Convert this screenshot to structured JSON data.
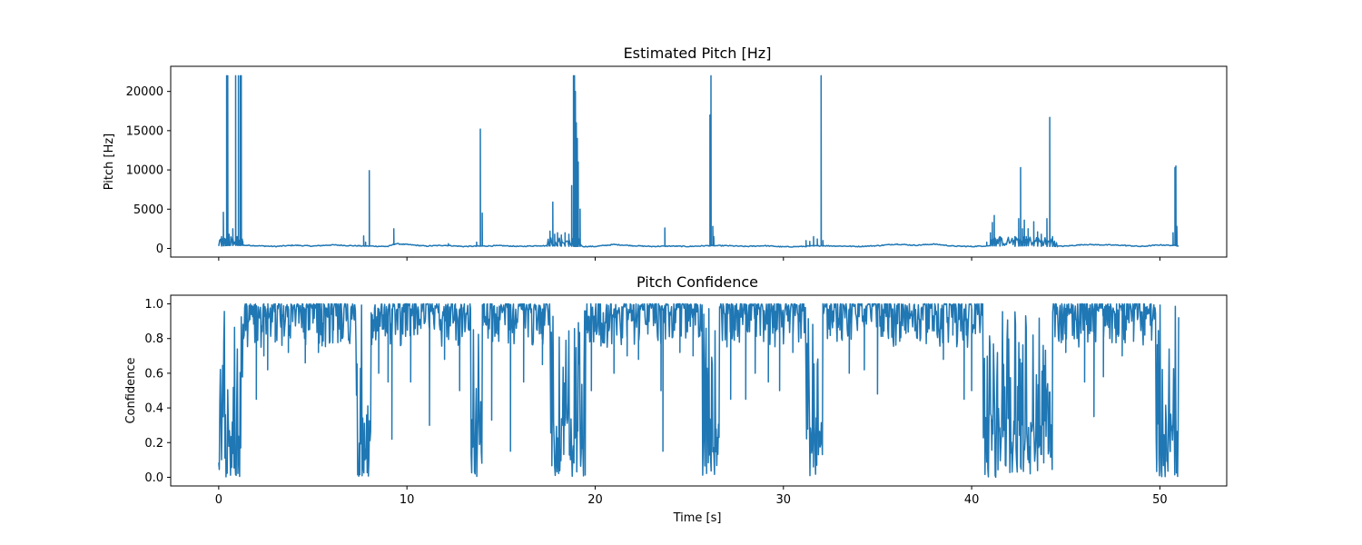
{
  "figure": {
    "background": "#ffffff",
    "series_color": "#1f77b4"
  },
  "chart_data": [
    {
      "type": "line",
      "title": "Estimated Pitch [Hz]",
      "xlabel": "",
      "ylabel": "Pitch [Hz]",
      "xlim": [
        -2.55,
        53.55
      ],
      "ylim": [
        -1100,
        23200
      ],
      "xticks": [
        0,
        10,
        20,
        30,
        40,
        50
      ],
      "xtick_labels_shown": false,
      "yticks": [
        0,
        5000,
        10000,
        15000,
        20000
      ],
      "ytick_labels": [
        "0",
        "5000",
        "10000",
        "15000",
        "20000"
      ],
      "grid": false,
      "legend": "none",
      "baseline": [
        [
          0,
          280
        ],
        [
          0.5,
          380
        ],
        [
          1.5,
          400
        ],
        [
          3,
          250
        ],
        [
          4,
          400
        ],
        [
          5,
          300
        ],
        [
          6,
          450
        ],
        [
          7,
          350
        ],
        [
          8,
          300
        ],
        [
          9,
          250
        ],
        [
          9.4,
          600
        ],
        [
          10,
          500
        ],
        [
          11,
          300
        ],
        [
          12,
          400
        ],
        [
          13,
          250
        ],
        [
          14,
          300
        ],
        [
          15,
          350
        ],
        [
          16,
          250
        ],
        [
          17,
          350
        ],
        [
          18,
          300
        ],
        [
          19.5,
          250
        ],
        [
          20,
          250
        ],
        [
          21,
          500
        ],
        [
          22,
          350
        ],
        [
          23,
          250
        ],
        [
          24,
          300
        ],
        [
          25,
          250
        ],
        [
          26,
          350
        ],
        [
          27,
          350
        ],
        [
          28,
          250
        ],
        [
          29,
          350
        ],
        [
          30,
          200
        ],
        [
          31,
          250
        ],
        [
          32,
          350
        ],
        [
          33,
          300
        ],
        [
          34,
          250
        ],
        [
          35,
          350
        ],
        [
          36,
          550
        ],
        [
          37,
          400
        ],
        [
          38,
          550
        ],
        [
          39,
          300
        ],
        [
          40,
          250
        ],
        [
          41,
          350
        ],
        [
          42,
          250
        ],
        [
          43,
          350
        ],
        [
          44,
          250
        ],
        [
          45,
          300
        ],
        [
          46,
          500
        ],
        [
          47,
          450
        ],
        [
          48,
          400
        ],
        [
          49,
          250
        ],
        [
          50,
          450
        ],
        [
          51,
          350
        ]
      ],
      "spikes": [
        [
          0.15,
          1500
        ],
        [
          0.25,
          4600
        ],
        [
          0.35,
          1200
        ],
        [
          0.42,
          22000
        ],
        [
          0.48,
          22000
        ],
        [
          0.55,
          1800
        ],
        [
          0.62,
          800
        ],
        [
          0.75,
          2500
        ],
        [
          0.9,
          22000
        ],
        [
          0.98,
          1500
        ],
        [
          1.05,
          22000
        ],
        [
          1.1,
          600
        ],
        [
          1.15,
          22000
        ],
        [
          1.2,
          22000
        ],
        [
          1.28,
          900
        ],
        [
          7.7,
          1600
        ],
        [
          7.8,
          800
        ],
        [
          8.0,
          9900
        ],
        [
          9.3,
          2500
        ],
        [
          12.2,
          600
        ],
        [
          13.7,
          800
        ],
        [
          13.9,
          15200
        ],
        [
          14.0,
          4500
        ],
        [
          17.6,
          2200
        ],
        [
          17.75,
          5900
        ],
        [
          17.85,
          1800
        ],
        [
          18.0,
          2000
        ],
        [
          18.2,
          1700
        ],
        [
          18.4,
          2000
        ],
        [
          18.6,
          1800
        ],
        [
          18.75,
          8000
        ],
        [
          18.85,
          22000
        ],
        [
          18.9,
          22000
        ],
        [
          18.95,
          20000
        ],
        [
          19.0,
          16000
        ],
        [
          19.05,
          14000
        ],
        [
          19.1,
          11000
        ],
        [
          19.2,
          5000
        ],
        [
          23.7,
          2600
        ],
        [
          26.1,
          17000
        ],
        [
          26.15,
          22000
        ],
        [
          26.25,
          2800
        ],
        [
          26.3,
          1500
        ],
        [
          31.2,
          1000
        ],
        [
          31.4,
          900
        ],
        [
          31.6,
          1500
        ],
        [
          31.8,
          1200
        ],
        [
          32.0,
          22000
        ],
        [
          32.1,
          1000
        ],
        [
          40.8,
          800
        ],
        [
          41.0,
          2000
        ],
        [
          41.1,
          3300
        ],
        [
          41.2,
          4200
        ],
        [
          41.5,
          800
        ],
        [
          42.3,
          1500
        ],
        [
          42.5,
          3800
        ],
        [
          42.6,
          10300
        ],
        [
          42.7,
          2500
        ],
        [
          42.8,
          3600
        ],
        [
          42.9,
          1500
        ],
        [
          43.0,
          2500
        ],
        [
          43.3,
          3400
        ],
        [
          43.5,
          2100
        ],
        [
          43.7,
          1800
        ],
        [
          44.0,
          3800
        ],
        [
          44.15,
          16700
        ],
        [
          44.3,
          1500
        ],
        [
          44.4,
          800
        ],
        [
          50.7,
          2000
        ],
        [
          50.8,
          10300
        ],
        [
          50.85,
          10500
        ],
        [
          50.9,
          2800
        ],
        [
          51.0,
          1500
        ]
      ]
    },
    {
      "type": "line",
      "title": "Pitch Confidence",
      "xlabel": "Time [s]",
      "ylabel": "Confidence",
      "xlim": [
        -2.55,
        53.55
      ],
      "ylim": [
        -0.05,
        1.05
      ],
      "xticks": [
        0,
        10,
        20,
        30,
        40,
        50
      ],
      "xtick_labels": [
        "0",
        "10",
        "20",
        "30",
        "40",
        "50"
      ],
      "yticks": [
        0.0,
        0.2,
        0.4,
        0.6,
        0.8,
        1.0
      ],
      "ytick_labels": [
        "0.0",
        "0.2",
        "0.4",
        "0.6",
        "0.8",
        "1.0"
      ],
      "grid": false,
      "legend": "none",
      "high_segments": [
        [
          1.3,
          7.3
        ],
        [
          9.5,
          13.4
        ],
        [
          19.5,
          25.7
        ],
        [
          26.6,
          31.2
        ],
        [
          32.1,
          40.6
        ],
        [
          44.3,
          49.8
        ]
      ],
      "low_segments": [
        [
          0,
          1.3
        ],
        [
          7.3,
          8.1
        ],
        [
          13.4,
          14.0
        ],
        [
          17.6,
          19.5
        ],
        [
          25.7,
          26.6
        ],
        [
          31.2,
          32.1
        ],
        [
          40.6,
          44.3
        ],
        [
          49.8,
          51.0
        ]
      ],
      "dips": [
        [
          2.0,
          0.45
        ],
        [
          2.4,
          0.7
        ],
        [
          2.6,
          0.62
        ],
        [
          3.0,
          0.78
        ],
        [
          3.7,
          0.72
        ],
        [
          4.6,
          0.66
        ],
        [
          5.3,
          0.72
        ],
        [
          6.1,
          0.85
        ],
        [
          6.5,
          0.8
        ],
        [
          8.5,
          0.6
        ],
        [
          9.0,
          0.55
        ],
        [
          9.2,
          0.22
        ],
        [
          10.2,
          0.55
        ],
        [
          11.2,
          0.3
        ],
        [
          12.0,
          0.68
        ],
        [
          12.8,
          0.5
        ],
        [
          14.5,
          0.33
        ],
        [
          15.5,
          0.15
        ],
        [
          16.2,
          0.55
        ],
        [
          17.2,
          0.65
        ],
        [
          19.8,
          0.5
        ],
        [
          21.0,
          0.6
        ],
        [
          21.7,
          0.7
        ],
        [
          22.3,
          0.68
        ],
        [
          23.5,
          0.5
        ],
        [
          23.6,
          0.15
        ],
        [
          24.5,
          0.72
        ],
        [
          25.2,
          0.7
        ],
        [
          27.2,
          0.45
        ],
        [
          28.0,
          0.45
        ],
        [
          28.5,
          0.6
        ],
        [
          29.2,
          0.55
        ],
        [
          29.8,
          0.5
        ],
        [
          30.5,
          0.72
        ],
        [
          33.0,
          0.85
        ],
        [
          33.5,
          0.6
        ],
        [
          34.3,
          0.62
        ],
        [
          35.0,
          0.48
        ],
        [
          35.8,
          0.9
        ],
        [
          36.5,
          0.86
        ],
        [
          38.5,
          0.68
        ],
        [
          39.0,
          0.82
        ],
        [
          39.6,
          0.45
        ],
        [
          40.0,
          0.5
        ],
        [
          45.0,
          0.72
        ],
        [
          46.0,
          0.55
        ],
        [
          46.5,
          0.35
        ],
        [
          47.0,
          0.58
        ],
        [
          48.0,
          0.7
        ],
        [
          48.6,
          0.8
        ],
        [
          49.2,
          0.82
        ]
      ]
    }
  ]
}
